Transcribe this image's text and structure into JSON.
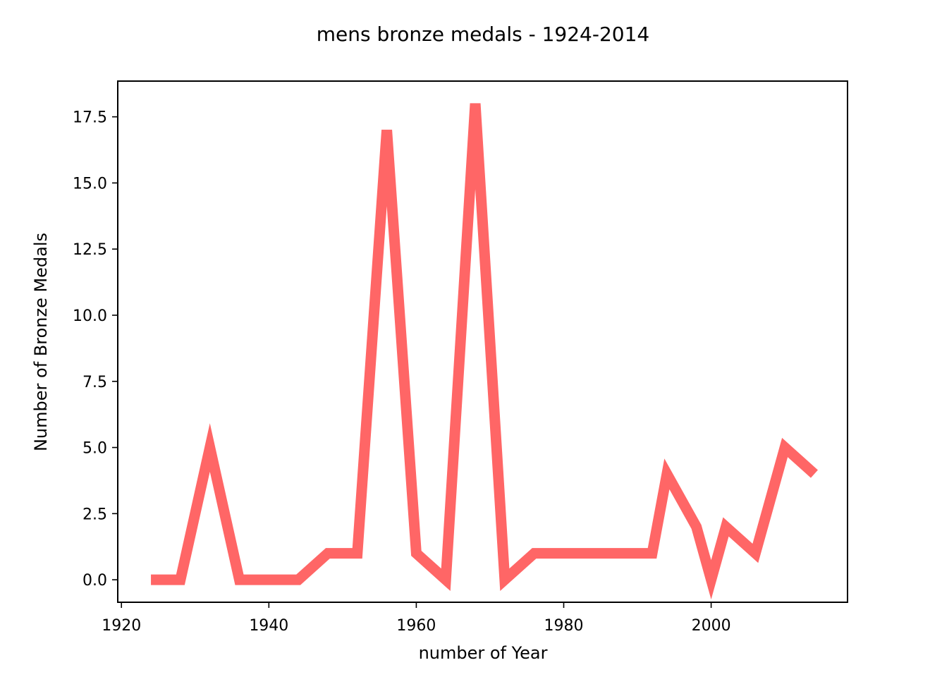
{
  "chart_data": {
    "type": "line",
    "title": "mens bronze medals - 1924-2014",
    "xlabel": "number of Year",
    "ylabel": "Number of Bronze Medals",
    "xlim": [
      1919.5,
      2018.5
    ],
    "ylim": [
      -0.85,
      18.85
    ],
    "xticks": [
      1920,
      1940,
      1960,
      1980,
      2000
    ],
    "yticks": [
      0.0,
      2.5,
      5.0,
      7.5,
      10.0,
      12.5,
      15.0,
      17.5
    ],
    "xtick_labels": [
      "1920",
      "1940",
      "1960",
      "1980",
      "2000"
    ],
    "ytick_labels": [
      "0.0",
      "2.5",
      "5.0",
      "7.5",
      "10.0",
      "12.5",
      "15.0",
      "17.5"
    ],
    "grid": false,
    "legend": "none",
    "series": [
      {
        "color": "#ff6666",
        "x": [
          1924,
          1928,
          1932,
          1936,
          1944,
          1948,
          1952,
          1956,
          1960,
          1964,
          1968,
          1972,
          1976,
          1992,
          1994,
          1998,
          2000,
          2002,
          2006,
          2010,
          2014
        ],
        "y": [
          0,
          0,
          5,
          0,
          0,
          1,
          1,
          17,
          1,
          0,
          18,
          0,
          1,
          1,
          4,
          2,
          0,
          2,
          1,
          5,
          4
        ]
      }
    ]
  }
}
